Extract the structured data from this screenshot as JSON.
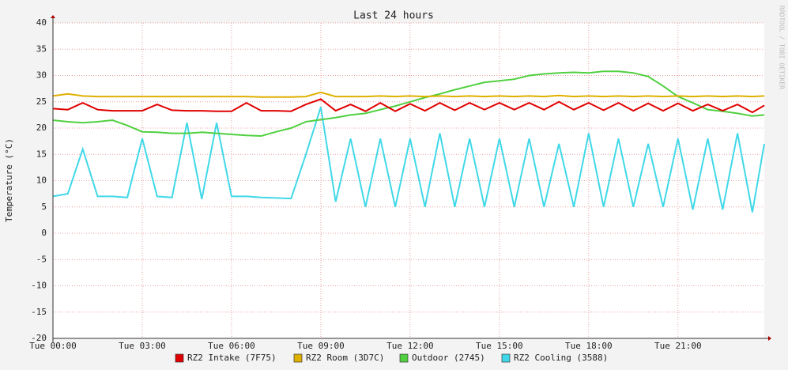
{
  "chart_data": {
    "type": "line",
    "title": "Last 24 hours",
    "y_label": "Temperature (°C)",
    "watermark": "RRDTOOL / TOBI OETIKER",
    "x": [
      0,
      0.5,
      1,
      1.5,
      2,
      2.5,
      3,
      3.5,
      4,
      4.5,
      5,
      5.5,
      6,
      6.5,
      7,
      7.5,
      8,
      8.5,
      9,
      9.5,
      10,
      10.5,
      11,
      11.5,
      12,
      12.5,
      13,
      13.5,
      14,
      14.5,
      15,
      15.5,
      16,
      16.5,
      17,
      17.5,
      18,
      18.5,
      19,
      19.5,
      20,
      20.5,
      21,
      21.5,
      22,
      22.5,
      23,
      23.5,
      23.9
    ],
    "xlim": [
      0,
      23.9
    ],
    "xticks": [
      {
        "value": 0,
        "label": "Tue 00:00"
      },
      {
        "value": 3,
        "label": "Tue 03:00"
      },
      {
        "value": 6,
        "label": "Tue 06:00"
      },
      {
        "value": 9,
        "label": "Tue 09:00"
      },
      {
        "value": 12,
        "label": "Tue 12:00"
      },
      {
        "value": 15,
        "label": "Tue 15:00"
      },
      {
        "value": 18,
        "label": "Tue 18:00"
      },
      {
        "value": 21,
        "label": "Tue 21:00"
      }
    ],
    "ylim": [
      -20,
      40
    ],
    "yticks": [
      -20,
      -15,
      -10,
      -5,
      0,
      5,
      10,
      15,
      20,
      25,
      30,
      35,
      40
    ],
    "grid": true,
    "series": [
      {
        "name": "RZ2 Intake (7F75)",
        "color": "#e00000",
        "values": [
          23.7,
          23.5,
          24.8,
          23.5,
          23.3,
          23.3,
          23.3,
          24.5,
          23.4,
          23.3,
          23.3,
          23.2,
          23.2,
          24.8,
          23.3,
          23.3,
          23.2,
          24.5,
          25.5,
          23.3,
          24.5,
          23.2,
          24.8,
          23.2,
          24.6,
          23.3,
          24.8,
          23.4,
          24.8,
          23.5,
          24.8,
          23.5,
          24.8,
          23.5,
          25,
          23.5,
          24.8,
          23.4,
          24.8,
          23.3,
          24.7,
          23.3,
          24.7,
          23.3,
          24.5,
          23.3,
          24.5,
          23.0,
          24.3
        ]
      },
      {
        "name": "RZ2 Room (3D7C)",
        "color": "#e0b000",
        "values": [
          26.1,
          26.5,
          26.1,
          26.0,
          26.0,
          26.0,
          26.0,
          26.0,
          26.0,
          26.0,
          26.0,
          26.0,
          26.0,
          26.0,
          25.9,
          25.9,
          25.9,
          26.0,
          26.8,
          26.0,
          26.0,
          26.0,
          26.1,
          26.0,
          26.1,
          26.0,
          26.1,
          26.0,
          26.1,
          26.0,
          26.1,
          26.0,
          26.1,
          26.0,
          26.2,
          26.0,
          26.1,
          26.0,
          26.1,
          26.0,
          26.1,
          26.0,
          26.1,
          26.0,
          26.1,
          26.0,
          26.1,
          26.0,
          26.1
        ]
      },
      {
        "name": "Outdoor (2745)",
        "color": "#50d040",
        "values": [
          21.5,
          21.2,
          21,
          21.2,
          21.5,
          20.5,
          19.3,
          19.2,
          19,
          19,
          19.2,
          19,
          18.8,
          18.6,
          18.5,
          19.3,
          20,
          21.2,
          21.6,
          22,
          22.5,
          22.8,
          23.5,
          24.2,
          25,
          25.8,
          26.5,
          27.3,
          28,
          28.7,
          29,
          29.3,
          30,
          30.3,
          30.5,
          30.6,
          30.5,
          30.8,
          30.8,
          30.5,
          29.8,
          28,
          26,
          24.8,
          23.5,
          23.2,
          22.8,
          22.3,
          22.5
        ]
      },
      {
        "name": "RZ2 Cooling (3588)",
        "color": "#40d8e8",
        "values": [
          7,
          7.5,
          16,
          7,
          7,
          6.8,
          18,
          7,
          6.8,
          21,
          6.5,
          21,
          7,
          7,
          6.8,
          6.7,
          6.6,
          15,
          24,
          6,
          18,
          5,
          18,
          5,
          18,
          5,
          19,
          5,
          18,
          5,
          18,
          5,
          18,
          5,
          17,
          5,
          19,
          5,
          18,
          5,
          17,
          5,
          18,
          4.5,
          18,
          4.5,
          19,
          4,
          17
        ]
      }
    ]
  }
}
